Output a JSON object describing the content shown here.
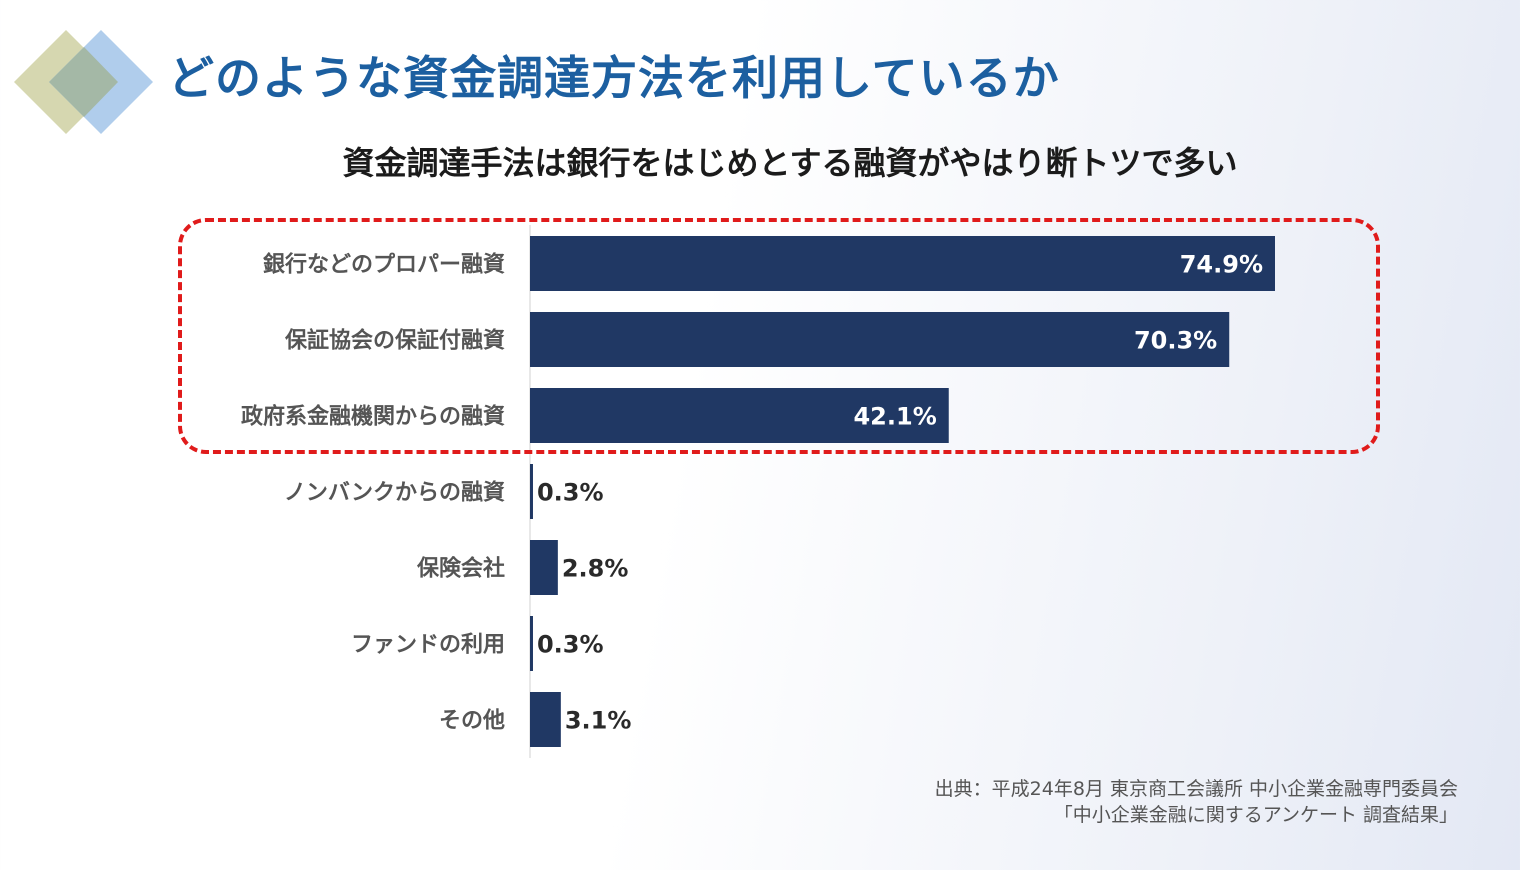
{
  "header": {
    "title": "どのような資金調達方法を利用しているか",
    "subtitle": "資金調達手法は銀行をはじめとする融資がやはり断トツで多い"
  },
  "colors": {
    "bar": "#203864",
    "title": "#1c5fa0",
    "highlight": "#e01b1b",
    "logo_left": "#d6d7b0",
    "logo_right": "#b0cdec",
    "logo_overlap": "#a4b8a6"
  },
  "chart_data": {
    "type": "bar",
    "orientation": "horizontal",
    "categories": [
      "銀行などのプロパー融資",
      "保証協会の保証付融資",
      "政府系金融機関からの融資",
      "ノンバンクからの融資",
      "保険会社",
      "ファンドの利用",
      "その他"
    ],
    "values": [
      74.9,
      70.3,
      42.1,
      0.3,
      2.8,
      0.3,
      3.1
    ],
    "labels": [
      "74.9%",
      "70.3%",
      "42.1%",
      "0.3%",
      "2.8%",
      "0.3%",
      "3.1%"
    ],
    "unit": "%",
    "highlighted_categories": [
      "銀行などのプロパー融資",
      "保証協会の保証付融資",
      "政府系金融機関からの融資"
    ],
    "grid": false,
    "xlabel": "",
    "ylabel": ""
  },
  "source": {
    "line1": "出典：平成24年8月 東京商工会議所 中小企業金融専門委員会",
    "line2": "「中小企業金融に関するアンケート 調査結果」"
  }
}
